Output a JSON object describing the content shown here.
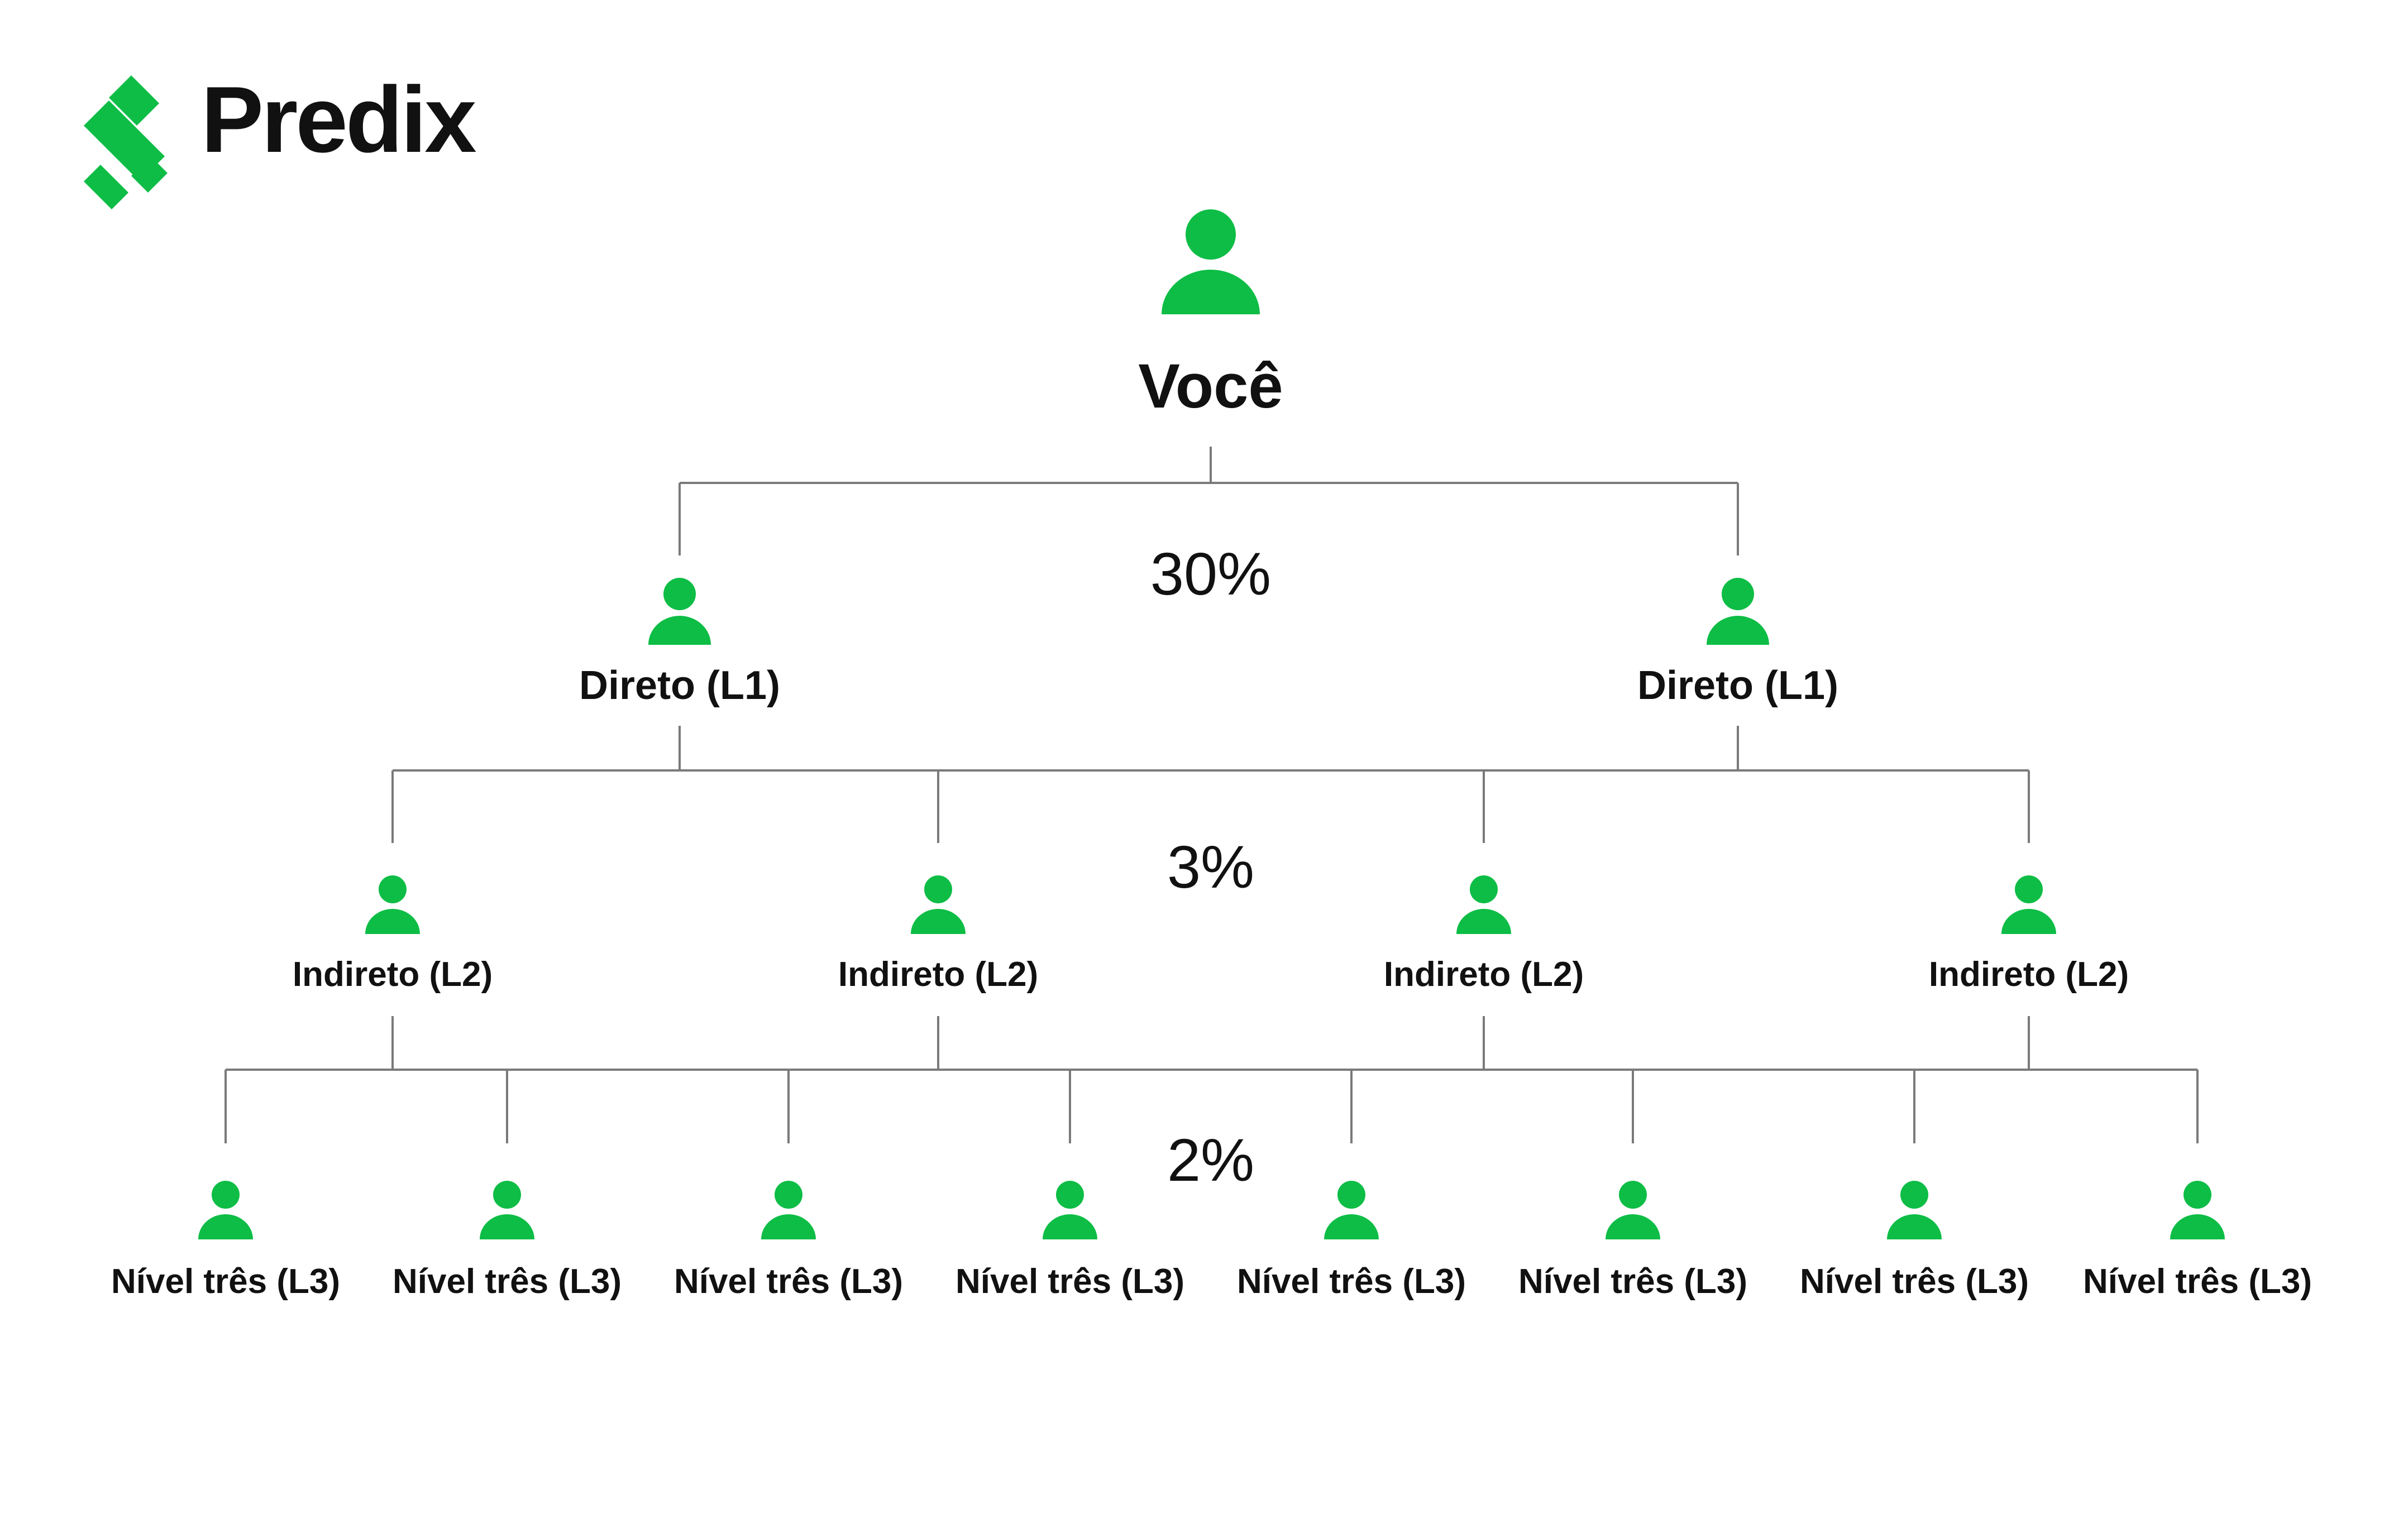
{
  "brand": {
    "name": "Predix",
    "logo_icon": "percent-cross-logo-icon",
    "accent_color": "#0dbd45"
  },
  "root": {
    "label": "Você",
    "icon": "person-icon"
  },
  "levels": [
    {
      "rate": "30%",
      "nodes": [
        {
          "label": "Direto (L1)",
          "icon": "person-icon"
        },
        {
          "label": "Direto (L1)",
          "icon": "person-icon"
        }
      ]
    },
    {
      "rate": "3%",
      "nodes": [
        {
          "label": "Indireto (L2)",
          "icon": "person-icon"
        },
        {
          "label": "Indireto (L2)",
          "icon": "person-icon"
        },
        {
          "label": "Indireto (L2)",
          "icon": "person-icon"
        },
        {
          "label": "Indireto (L2)",
          "icon": "person-icon"
        }
      ]
    },
    {
      "rate": "2%",
      "nodes": [
        {
          "label": "Nível três (L3)",
          "icon": "person-icon"
        },
        {
          "label": "Nível três (L3)",
          "icon": "person-icon"
        },
        {
          "label": "Nível três (L3)",
          "icon": "person-icon"
        },
        {
          "label": "Nível três (L3)",
          "icon": "person-icon"
        },
        {
          "label": "Nível três (L3)",
          "icon": "person-icon"
        },
        {
          "label": "Nível três (L3)",
          "icon": "person-icon"
        },
        {
          "label": "Nível três (L3)",
          "icon": "person-icon"
        },
        {
          "label": "Nível três (L3)",
          "icon": "person-icon"
        }
      ]
    }
  ]
}
